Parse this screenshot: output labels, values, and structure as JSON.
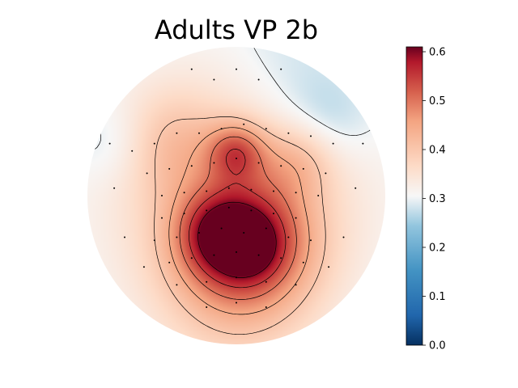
{
  "chart_data": {
    "type": "heatmap",
    "subtype": "eeg-topomap",
    "title": "Adults VP 2b",
    "colormap": "RdBu_r",
    "colorbar": {
      "range": [
        0.0,
        0.61
      ],
      "ticks": [
        "0.0",
        "0.1",
        "0.2",
        "0.3",
        "0.4",
        "0.5",
        "0.6"
      ]
    },
    "contour_levels": [
      0.3,
      0.4,
      0.45,
      0.5,
      0.55,
      0.6
    ],
    "sources": [
      {
        "x": 0.0,
        "y": 0.0,
        "sigma": 0.85,
        "amp": 0.1
      },
      {
        "x": 0.05,
        "y": -0.3,
        "sigma": 0.3,
        "amp": 0.26
      },
      {
        "x": 0.08,
        "y": -0.35,
        "sigma": 0.12,
        "amp": 0.06
      },
      {
        "x": -0.15,
        "y": -0.25,
        "sigma": 0.18,
        "amp": 0.08
      },
      {
        "x": 0.0,
        "y": 0.3,
        "sigma": 0.14,
        "amp": 0.14
      },
      {
        "x": -0.45,
        "y": 0.35,
        "sigma": 0.25,
        "amp": 0.07
      },
      {
        "x": 0.42,
        "y": 0.25,
        "sigma": 0.18,
        "amp": 0.07
      },
      {
        "x": 0.6,
        "y": 0.5,
        "sigma": 0.22,
        "amp": -0.05
      },
      {
        "x": -0.8,
        "y": 0.35,
        "sigma": 0.2,
        "amp": -0.04
      },
      {
        "x": 0.35,
        "y": 0.85,
        "sigma": 0.3,
        "amp": -0.03
      },
      {
        "x": 0.0,
        "y": -0.8,
        "sigma": 0.4,
        "amp": 0.05
      }
    ],
    "baseline": 0.27,
    "sensors": [
      [
        -0.3,
        0.85
      ],
      [
        0.0,
        0.85
      ],
      [
        0.3,
        0.85
      ],
      [
        -0.15,
        0.78
      ],
      [
        0.15,
        0.78
      ],
      [
        -0.85,
        0.35
      ],
      [
        -0.7,
        0.3
      ],
      [
        -0.55,
        0.35
      ],
      [
        -0.4,
        0.42
      ],
      [
        -0.25,
        0.42
      ],
      [
        -0.1,
        0.45
      ],
      [
        0.05,
        0.48
      ],
      [
        0.2,
        0.45
      ],
      [
        0.35,
        0.42
      ],
      [
        0.5,
        0.4
      ],
      [
        0.65,
        0.35
      ],
      [
        0.85,
        0.35
      ],
      [
        -0.6,
        0.15
      ],
      [
        -0.45,
        0.18
      ],
      [
        -0.3,
        0.2
      ],
      [
        -0.15,
        0.22
      ],
      [
        0.0,
        0.25
      ],
      [
        0.15,
        0.22
      ],
      [
        0.3,
        0.2
      ],
      [
        0.45,
        0.18
      ],
      [
        0.6,
        0.15
      ],
      [
        -0.82,
        0.05
      ],
      [
        -0.5,
        0.0
      ],
      [
        -0.35,
        0.02
      ],
      [
        -0.2,
        0.03
      ],
      [
        -0.05,
        0.05
      ],
      [
        0.1,
        0.04
      ],
      [
        0.25,
        0.03
      ],
      [
        0.4,
        0.02
      ],
      [
        0.55,
        0.0
      ],
      [
        0.8,
        0.05
      ],
      [
        -0.5,
        -0.15
      ],
      [
        -0.35,
        -0.12
      ],
      [
        -0.2,
        -0.1
      ],
      [
        -0.05,
        -0.08
      ],
      [
        0.1,
        -0.1
      ],
      [
        0.25,
        -0.12
      ],
      [
        0.4,
        -0.15
      ],
      [
        -0.75,
        -0.28
      ],
      [
        -0.55,
        -0.3
      ],
      [
        -0.4,
        -0.28
      ],
      [
        -0.25,
        -0.25
      ],
      [
        -0.1,
        -0.22
      ],
      [
        0.05,
        -0.25
      ],
      [
        0.2,
        -0.22
      ],
      [
        0.35,
        -0.28
      ],
      [
        0.5,
        -0.3
      ],
      [
        0.72,
        -0.28
      ],
      [
        -0.45,
        -0.45
      ],
      [
        -0.3,
        -0.42
      ],
      [
        -0.15,
        -0.4
      ],
      [
        0.0,
        -0.38
      ],
      [
        0.15,
        -0.4
      ],
      [
        0.3,
        -0.42
      ],
      [
        0.45,
        -0.45
      ],
      [
        -0.62,
        -0.48
      ],
      [
        0.62,
        -0.48
      ],
      [
        -0.4,
        -0.6
      ],
      [
        -0.2,
        -0.58
      ],
      [
        0.0,
        -0.55
      ],
      [
        0.2,
        -0.58
      ],
      [
        0.4,
        -0.6
      ],
      [
        -0.2,
        -0.75
      ],
      [
        0.0,
        -0.72
      ],
      [
        0.2,
        -0.75
      ]
    ]
  }
}
